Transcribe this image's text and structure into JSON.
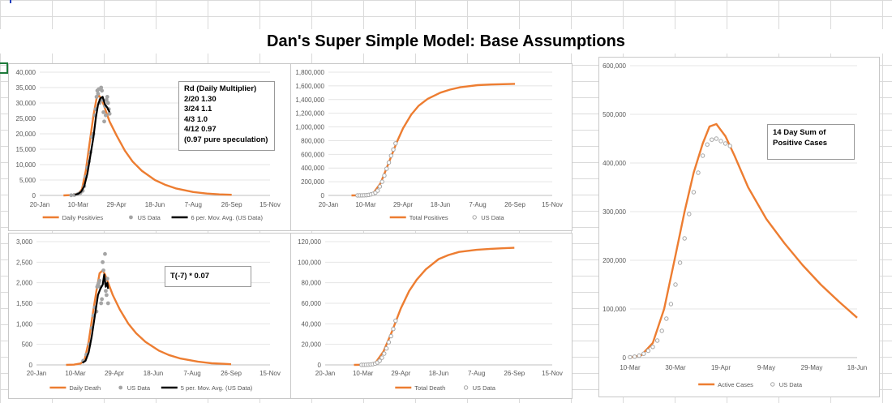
{
  "page_title": "Dan's Super Simple Model:  Base Assumptions",
  "chart_data": [
    {
      "id": "daily-positives",
      "type": "line",
      "title": "",
      "x_type": "date",
      "xlim": [
        "2020-01-20",
        "2020-11-15"
      ],
      "x_ticks": [
        "2020-01-20",
        "2020-03-10",
        "2020-04-29",
        "2020-06-18",
        "2020-08-07",
        "2020-09-26",
        "2020-11-15"
      ],
      "x_tick_labels": [
        "20-Jan",
        "10-Mar",
        "29-Apr",
        "18-Jun",
        "7-Aug",
        "26-Sep",
        "15-Nov"
      ],
      "ylim": [
        0,
        40000
      ],
      "y_ticks": [
        0,
        5000,
        10000,
        15000,
        20000,
        25000,
        30000,
        35000,
        40000
      ],
      "y_tick_labels": [
        "0",
        "5,000",
        "10,000",
        "15,000",
        "20,000",
        "25,000",
        "30,000",
        "35,000",
        "40,000"
      ],
      "grid": true,
      "legend_position": "bottom",
      "note": [
        "Rd (Daily Multiplier)",
        "2/20 1.30",
        "3/24 1.1",
        "4/3 1.0",
        "4/12 0.97",
        "(0.97 pure speculation)"
      ],
      "series": [
        {
          "name": "Daily Positivies",
          "style": "line",
          "color": "#ED7D31",
          "x": [
            "2020-02-20",
            "2020-03-01",
            "2020-03-10",
            "2020-03-15",
            "2020-03-20",
            "2020-03-25",
            "2020-03-30",
            "2020-04-03",
            "2020-04-06",
            "2020-04-10",
            "2020-04-15",
            "2020-04-20",
            "2020-04-29",
            "2020-05-10",
            "2020-05-20",
            "2020-06-01",
            "2020-06-18",
            "2020-07-01",
            "2020-07-15",
            "2020-08-07",
            "2020-08-25",
            "2020-09-10",
            "2020-09-26"
          ],
          "y": [
            0,
            100,
            500,
            2000,
            8000,
            17000,
            26000,
            31500,
            32500,
            31000,
            27500,
            24000,
            19500,
            14500,
            11000,
            8000,
            5000,
            3500,
            2300,
            1100,
            600,
            350,
            200
          ]
        },
        {
          "name": "US Data",
          "style": "dots",
          "color": "#A5A5A5",
          "x": [
            "2020-03-01",
            "2020-03-05",
            "2020-03-10",
            "2020-03-13",
            "2020-03-16",
            "2020-03-18",
            "2020-03-20",
            "2020-03-22",
            "2020-03-24",
            "2020-03-26",
            "2020-03-28",
            "2020-03-30",
            "2020-04-01",
            "2020-04-02",
            "2020-04-03",
            "2020-04-04",
            "2020-04-05",
            "2020-04-06",
            "2020-04-07",
            "2020-04-08",
            "2020-04-09",
            "2020-04-10",
            "2020-04-11",
            "2020-04-12",
            "2020-04-13",
            "2020-04-14",
            "2020-04-15",
            "2020-04-16",
            "2020-04-17",
            "2020-04-18",
            "2020-04-19",
            "2020-04-20"
          ],
          "y": [
            50,
            150,
            500,
            800,
            1500,
            3000,
            6000,
            9000,
            11000,
            14000,
            19000,
            20000,
            26000,
            28000,
            32000,
            34000,
            33000,
            34500,
            30000,
            31000,
            35000,
            34000,
            31000,
            27000,
            24000,
            29000,
            26000,
            31000,
            32000,
            30000,
            28000,
            26500
          ]
        },
        {
          "name": "6 per. Mov. Avg. (US Data)",
          "style": "line",
          "color": "#000000",
          "x": [
            "2020-03-06",
            "2020-03-10",
            "2020-03-14",
            "2020-03-18",
            "2020-03-22",
            "2020-03-26",
            "2020-03-30",
            "2020-04-02",
            "2020-04-05",
            "2020-04-08",
            "2020-04-11",
            "2020-04-14",
            "2020-04-17",
            "2020-04-20"
          ],
          "y": [
            200,
            500,
            1200,
            3000,
            7000,
            13000,
            19000,
            25000,
            29500,
            31500,
            32000,
            29500,
            28500,
            27000
          ]
        }
      ]
    },
    {
      "id": "total-positives",
      "type": "line",
      "title": "",
      "x_type": "date",
      "xlim": [
        "2020-01-20",
        "2020-11-15"
      ],
      "x_ticks": [
        "2020-01-20",
        "2020-03-10",
        "2020-04-29",
        "2020-06-18",
        "2020-08-07",
        "2020-09-26",
        "2020-11-15"
      ],
      "x_tick_labels": [
        "20-Jan",
        "10-Mar",
        "29-Apr",
        "18-Jun",
        "7-Aug",
        "26-Sep",
        "15-Nov"
      ],
      "ylim": [
        0,
        1800000
      ],
      "y_ticks": [
        0,
        200000,
        400000,
        600000,
        800000,
        1000000,
        1200000,
        1400000,
        1600000,
        1800000
      ],
      "y_tick_labels": [
        "0",
        "200,000",
        "400,000",
        "600,000",
        "800,000",
        "1,000,000",
        "1,200,000",
        "1,400,000",
        "1,600,000",
        "1,800,000"
      ],
      "grid": true,
      "legend_position": "bottom",
      "series": [
        {
          "name": "Total Positives",
          "style": "line",
          "color": "#ED7D31",
          "x": [
            "2020-02-20",
            "2020-03-10",
            "2020-03-20",
            "2020-03-30",
            "2020-04-10",
            "2020-04-20",
            "2020-04-29",
            "2020-05-10",
            "2020-05-20",
            "2020-06-01",
            "2020-06-18",
            "2020-07-01",
            "2020-07-15",
            "2020-08-07",
            "2020-08-25",
            "2020-09-10",
            "2020-09-26"
          ],
          "y": [
            0,
            2000,
            30000,
            180000,
            480000,
            760000,
            980000,
            1180000,
            1310000,
            1410000,
            1500000,
            1545000,
            1580000,
            1610000,
            1620000,
            1625000,
            1630000
          ]
        },
        {
          "name": "US Data",
          "style": "circles",
          "color": "#A5A5A5",
          "x": [
            "2020-02-28",
            "2020-03-02",
            "2020-03-05",
            "2020-03-08",
            "2020-03-11",
            "2020-03-14",
            "2020-03-17",
            "2020-03-20",
            "2020-03-23",
            "2020-03-26",
            "2020-03-29",
            "2020-04-01",
            "2020-04-04",
            "2020-04-07",
            "2020-04-10",
            "2020-04-13",
            "2020-04-16",
            "2020-04-19"
          ],
          "y": [
            0,
            500,
            1000,
            2000,
            4000,
            8000,
            15000,
            25000,
            40000,
            70000,
            130000,
            200000,
            290000,
            390000,
            480000,
            580000,
            670000,
            760000
          ]
        }
      ]
    },
    {
      "id": "active-cases",
      "type": "line",
      "title": "",
      "x_type": "date",
      "xlim": [
        "2020-03-10",
        "2020-06-18"
      ],
      "x_ticks": [
        "2020-03-10",
        "2020-03-30",
        "2020-04-19",
        "2020-05-09",
        "2020-05-29",
        "2020-06-18"
      ],
      "x_tick_labels": [
        "10-Mar",
        "30-Mar",
        "19-Apr",
        "9-May",
        "29-May",
        "18-Jun"
      ],
      "ylim": [
        0,
        600000
      ],
      "y_ticks": [
        0,
        100000,
        200000,
        300000,
        400000,
        500000,
        600000
      ],
      "y_tick_labels": [
        "0",
        "100,000",
        "200,000",
        "300,000",
        "400,000",
        "500,000",
        "600,000"
      ],
      "grid": true,
      "legend_position": "bottom",
      "note": [
        "14 Day Sum of",
        "Positive Cases"
      ],
      "series": [
        {
          "name": "Active Cases",
          "style": "line",
          "color": "#ED7D31",
          "x": [
            "2020-03-10",
            "2020-03-15",
            "2020-03-20",
            "2020-03-25",
            "2020-03-30",
            "2020-04-03",
            "2020-04-07",
            "2020-04-11",
            "2020-04-14",
            "2020-04-17",
            "2020-04-21",
            "2020-04-25",
            "2020-05-01",
            "2020-05-09",
            "2020-05-17",
            "2020-05-25",
            "2020-06-02",
            "2020-06-10",
            "2020-06-18"
          ],
          "y": [
            0,
            5000,
            30000,
            100000,
            210000,
            300000,
            380000,
            440000,
            475000,
            480000,
            455000,
            415000,
            350000,
            285000,
            235000,
            190000,
            150000,
            115000,
            82000
          ]
        },
        {
          "name": "US Data",
          "style": "circles",
          "color": "#A5A5A5",
          "x": [
            "2020-03-10",
            "2020-03-12",
            "2020-03-14",
            "2020-03-16",
            "2020-03-18",
            "2020-03-20",
            "2020-03-22",
            "2020-03-24",
            "2020-03-26",
            "2020-03-28",
            "2020-03-30",
            "2020-04-01",
            "2020-04-03",
            "2020-04-05",
            "2020-04-07",
            "2020-04-09",
            "2020-04-11",
            "2020-04-13",
            "2020-04-15",
            "2020-04-17",
            "2020-04-19",
            "2020-04-21",
            "2020-04-23"
          ],
          "y": [
            1000,
            2000,
            4000,
            8000,
            14000,
            22000,
            35000,
            55000,
            80000,
            110000,
            150000,
            195000,
            245000,
            295000,
            340000,
            380000,
            415000,
            438000,
            448000,
            450000,
            445000,
            440000,
            435000
          ]
        }
      ]
    },
    {
      "id": "daily-death",
      "type": "line",
      "title": "",
      "x_type": "date",
      "xlim": [
        "2020-01-20",
        "2020-11-15"
      ],
      "x_ticks": [
        "2020-01-20",
        "2020-03-10",
        "2020-04-29",
        "2020-06-18",
        "2020-08-07",
        "2020-09-26",
        "2020-11-15"
      ],
      "x_tick_labels": [
        "20-Jan",
        "10-Mar",
        "29-Apr",
        "18-Jun",
        "7-Aug",
        "26-Sep",
        "15-Nov"
      ],
      "ylim": [
        0,
        3000
      ],
      "y_ticks": [
        0,
        500,
        1000,
        1500,
        2000,
        2500,
        3000
      ],
      "y_tick_labels": [
        "0",
        "500",
        "1,000",
        "1,500",
        "2,000",
        "2,500",
        "3,000"
      ],
      "grid": true,
      "legend_position": "bottom",
      "note": [
        "T(-7) * 0.07"
      ],
      "series": [
        {
          "name": "Daily Death",
          "style": "line",
          "color": "#ED7D31",
          "x": [
            "2020-02-27",
            "2020-03-08",
            "2020-03-17",
            "2020-03-22",
            "2020-03-27",
            "2020-04-01",
            "2020-04-06",
            "2020-04-10",
            "2020-04-14",
            "2020-04-17",
            "2020-04-22",
            "2020-04-27",
            "2020-05-06",
            "2020-05-17",
            "2020-05-27",
            "2020-06-08",
            "2020-06-25",
            "2020-07-08",
            "2020-07-22",
            "2020-08-14",
            "2020-09-01",
            "2020-09-17",
            "2020-09-26"
          ],
          "y": [
            0,
            5,
            35,
            140,
            560,
            1200,
            1800,
            2230,
            2300,
            2200,
            1950,
            1700,
            1350,
            1000,
            770,
            560,
            350,
            240,
            160,
            80,
            40,
            25,
            15
          ]
        },
        {
          "name": "US Data",
          "style": "dots",
          "color": "#A5A5A5",
          "x": [
            "2020-03-20",
            "2020-03-24",
            "2020-03-28",
            "2020-03-31",
            "2020-04-02",
            "2020-04-04",
            "2020-04-06",
            "2020-04-07",
            "2020-04-08",
            "2020-04-09",
            "2020-04-10",
            "2020-04-11",
            "2020-04-12",
            "2020-04-13",
            "2020-04-14",
            "2020-04-15",
            "2020-04-16",
            "2020-04-17",
            "2020-04-18",
            "2020-04-19",
            "2020-04-20",
            "2020-04-21"
          ],
          "y": [
            100,
            250,
            500,
            900,
            1200,
            1400,
            1300,
            1900,
            1950,
            2000,
            2050,
            1900,
            1500,
            1600,
            2500,
            2300,
            2000,
            2700,
            1800,
            1700,
            2100,
            1500
          ]
        },
        {
          "name": "5 per. Mov. Avg. (US Data)",
          "style": "line",
          "color": "#000000",
          "x": [
            "2020-03-19",
            "2020-03-23",
            "2020-03-27",
            "2020-03-31",
            "2020-04-04",
            "2020-04-08",
            "2020-04-11",
            "2020-04-14",
            "2020-04-16",
            "2020-04-18",
            "2020-04-20",
            "2020-04-21"
          ],
          "y": [
            50,
            100,
            300,
            700,
            1200,
            1700,
            1850,
            1950,
            2200,
            1900,
            2000,
            1850
          ]
        }
      ]
    },
    {
      "id": "total-death",
      "type": "line",
      "title": "",
      "x_type": "date",
      "xlim": [
        "2020-01-20",
        "2020-11-15"
      ],
      "x_ticks": [
        "2020-01-20",
        "2020-03-10",
        "2020-04-29",
        "2020-06-18",
        "2020-08-07",
        "2020-09-26",
        "2020-11-15"
      ],
      "x_tick_labels": [
        "20-Jan",
        "10-Mar",
        "29-Apr",
        "18-Jun",
        "7-Aug",
        "26-Sep",
        "15-Nov"
      ],
      "ylim": [
        0,
        120000
      ],
      "y_ticks": [
        0,
        20000,
        40000,
        60000,
        80000,
        100000,
        120000
      ],
      "y_tick_labels": [
        "0",
        "20,000",
        "40,000",
        "60,000",
        "80,000",
        "100,000",
        "120,000"
      ],
      "grid": true,
      "legend_position": "bottom",
      "series": [
        {
          "name": "Total Death",
          "style": "line",
          "color": "#ED7D31",
          "x": [
            "2020-02-27",
            "2020-03-17",
            "2020-03-27",
            "2020-04-06",
            "2020-04-17",
            "2020-04-29",
            "2020-05-10",
            "2020-05-20",
            "2020-06-01",
            "2020-06-18",
            "2020-07-01",
            "2020-07-15",
            "2020-08-07",
            "2020-08-25",
            "2020-09-10",
            "2020-09-26"
          ],
          "y": [
            0,
            200,
            2500,
            13000,
            32000,
            55000,
            72000,
            83000,
            93000,
            103000,
            107000,
            110000,
            112000,
            113000,
            113500,
            114000
          ]
        },
        {
          "name": "US Data",
          "style": "circles",
          "color": "#A5A5A5",
          "x": [
            "2020-03-08",
            "2020-03-11",
            "2020-03-14",
            "2020-03-17",
            "2020-03-20",
            "2020-03-23",
            "2020-03-26",
            "2020-03-29",
            "2020-04-01",
            "2020-04-04",
            "2020-04-07",
            "2020-04-10",
            "2020-04-13",
            "2020-04-16",
            "2020-04-19",
            "2020-04-22"
          ],
          "y": [
            0,
            50,
            100,
            200,
            400,
            700,
            1200,
            2300,
            4000,
            7000,
            11000,
            16000,
            22000,
            28000,
            35000,
            43000
          ]
        }
      ]
    }
  ]
}
